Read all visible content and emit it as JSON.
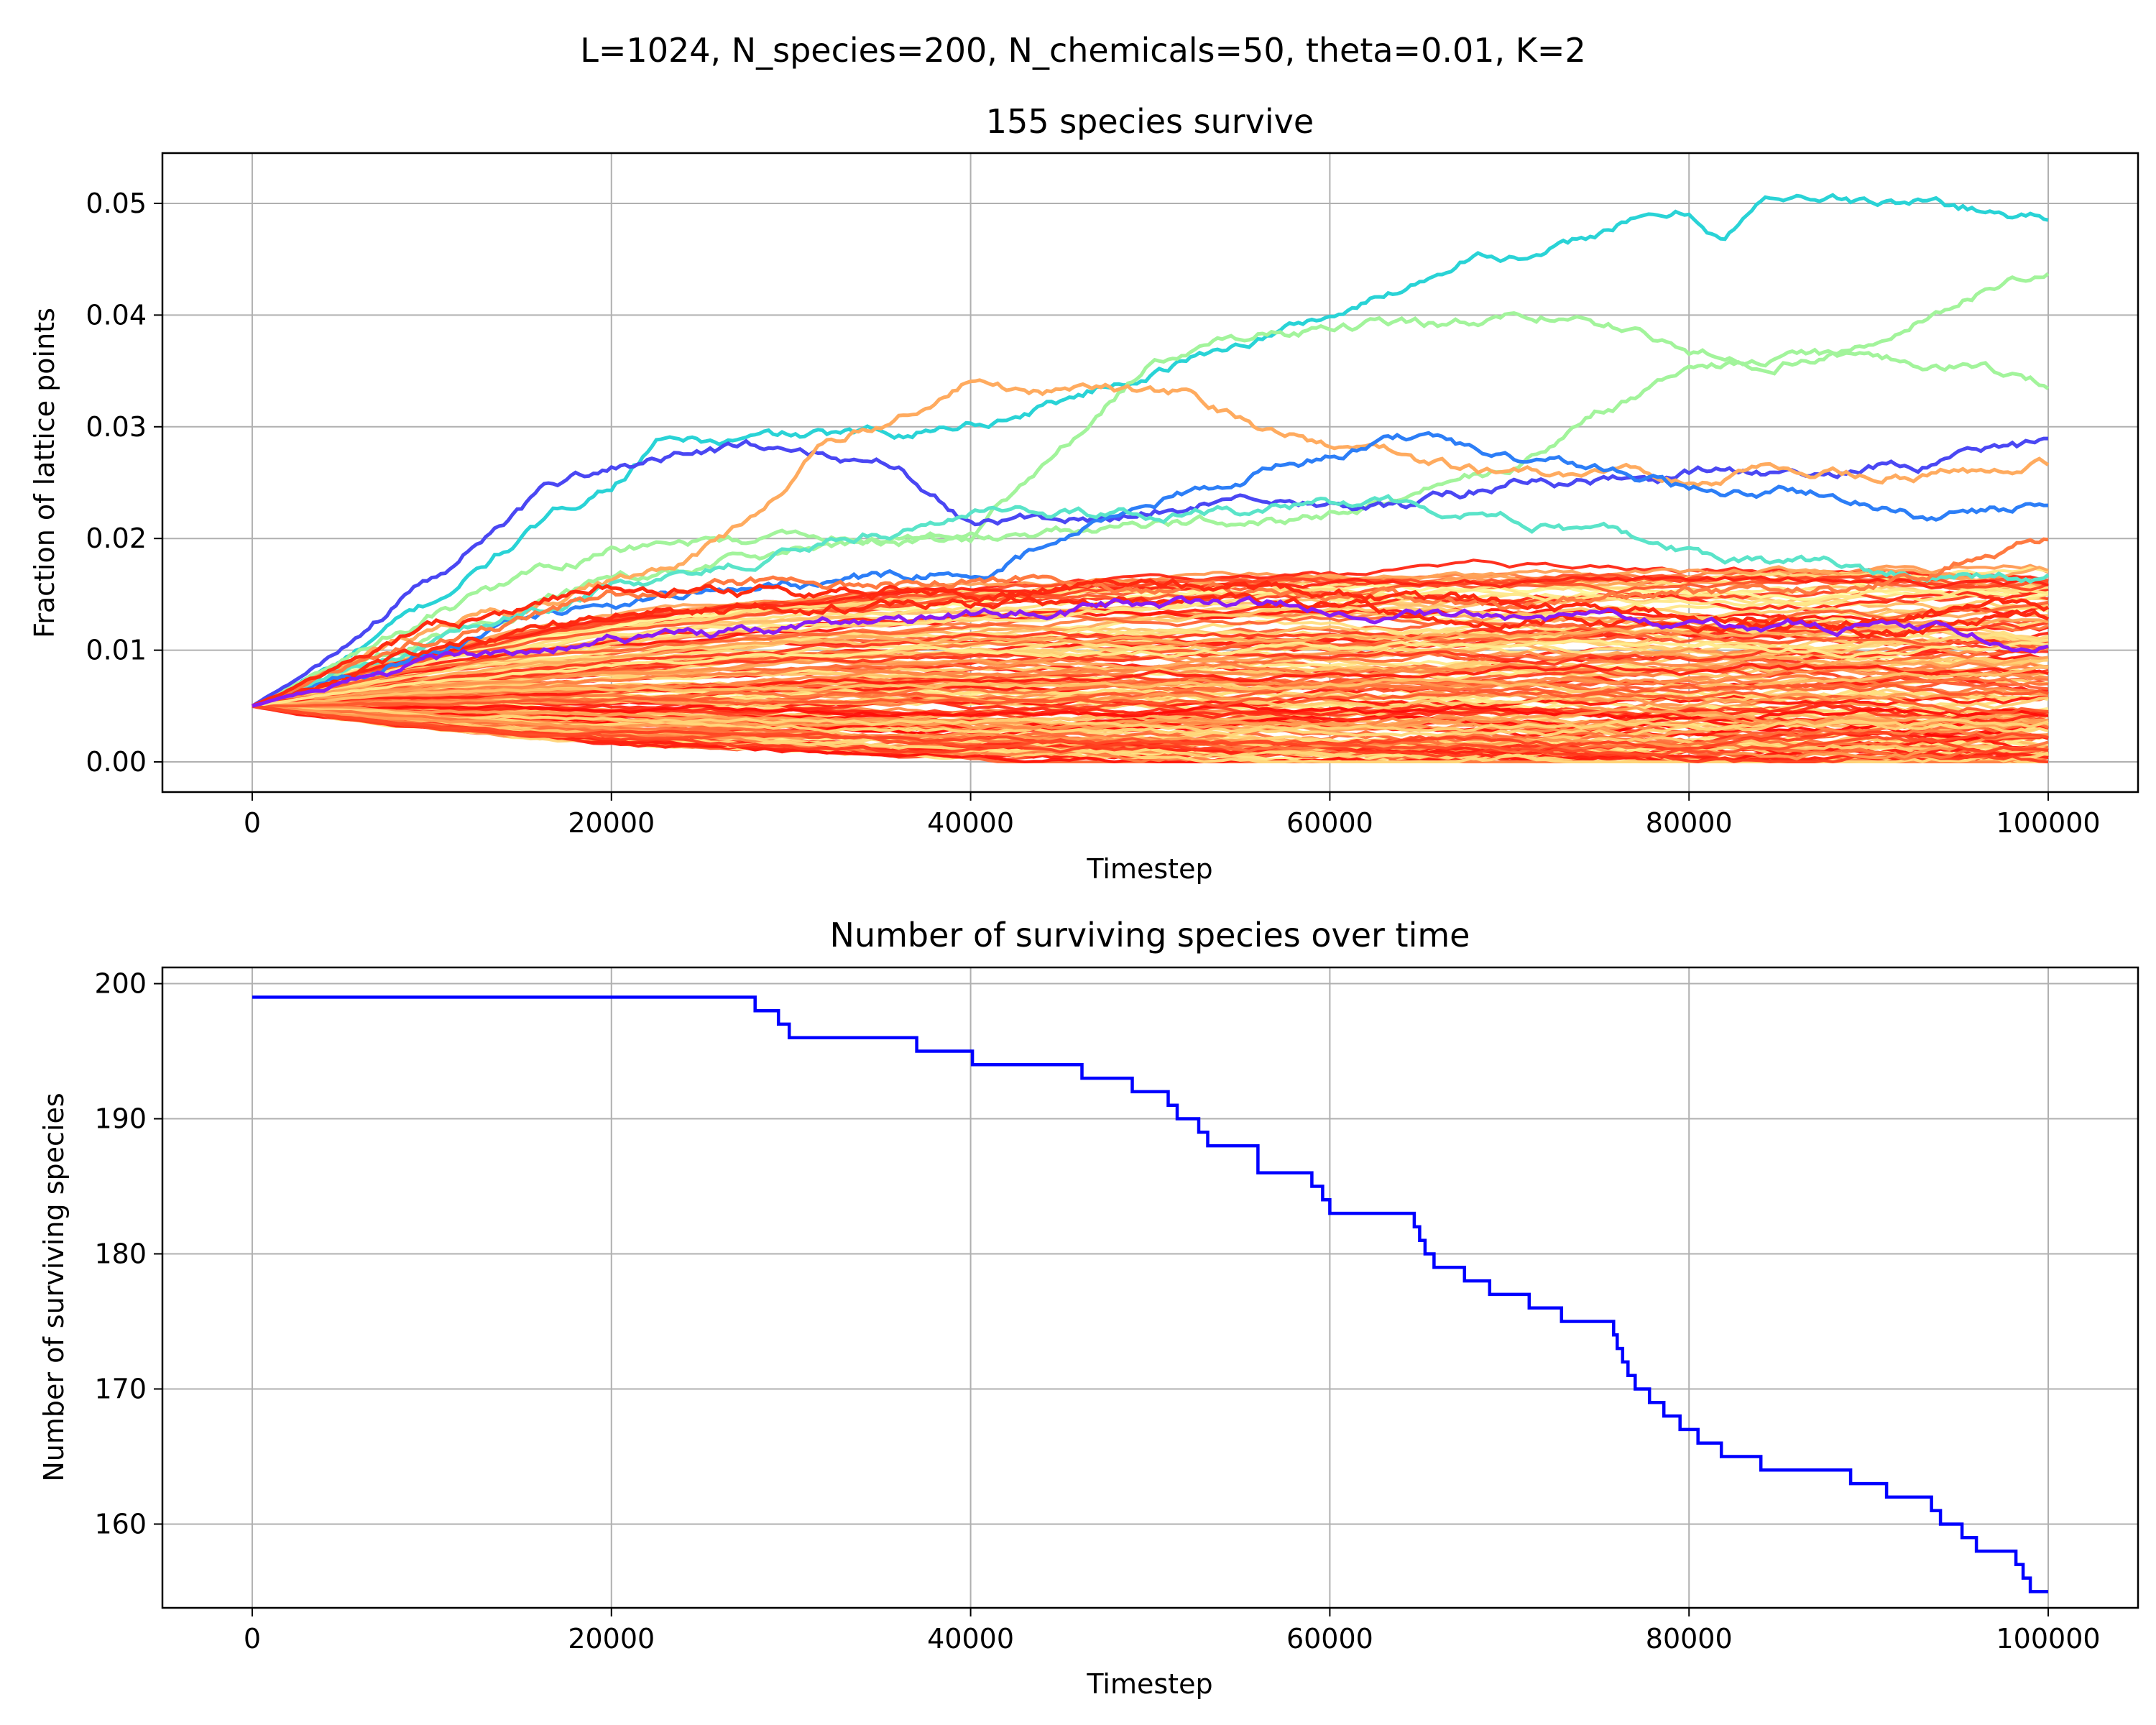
{
  "figure": {
    "suptitle": "L=1024, N_species=200, N_chemicals=50, theta=0.01, K=2",
    "colormap": "rainbow"
  },
  "chart_data": [
    {
      "type": "line",
      "title": "155 species survive",
      "xlabel": "Timestep",
      "ylabel": "Fraction of lattice points",
      "xlim": [
        -5000,
        105000
      ],
      "ylim": [
        -0.0027,
        0.0545
      ],
      "xticks": [
        0,
        20000,
        40000,
        60000,
        80000,
        100000
      ],
      "xtick_labels": [
        "0",
        "20000",
        "40000",
        "60000",
        "80000",
        "100000"
      ],
      "yticks": [
        0.0,
        0.01,
        0.02,
        0.03,
        0.04,
        0.05
      ],
      "ytick_labels": [
        "0.00",
        "0.01",
        "0.02",
        "0.03",
        "0.04",
        "0.05"
      ],
      "grid": true,
      "legend": "none",
      "initial_value": 0.005,
      "highlighted_series": [
        {
          "color": "#29d3d6",
          "x": [
            0,
            5000,
            10000,
            15000,
            20000,
            23000,
            26000,
            30000,
            34000,
            38000,
            42000,
            46000,
            50000,
            54000,
            58000,
            62000,
            66000,
            68000,
            72000,
            76000,
            80000,
            82000,
            84000,
            86000,
            90000,
            94000,
            98000,
            100000
          ],
          "y": [
            0.005,
            0.009,
            0.014,
            0.02,
            0.025,
            0.029,
            0.0285,
            0.029,
            0.029,
            0.03,
            0.031,
            0.033,
            0.035,
            0.037,
            0.039,
            0.041,
            0.044,
            0.046,
            0.045,
            0.048,
            0.049,
            0.047,
            0.05,
            0.051,
            0.05,
            0.05,
            0.049,
            0.049
          ]
        },
        {
          "color": "#a2f49b",
          "x": [
            0,
            10000,
            20000,
            30000,
            40000,
            50000,
            56000,
            62000,
            68000,
            72000,
            76000,
            80000,
            84000,
            88000,
            92000,
            96000,
            100000
          ],
          "y": [
            0.005,
            0.013,
            0.019,
            0.02,
            0.02,
            0.036,
            0.038,
            0.039,
            0.039,
            0.04,
            0.039,
            0.037,
            0.036,
            0.037,
            0.039,
            0.042,
            0.044
          ]
        },
        {
          "color": "#a2f49b",
          "x": [
            0,
            10000,
            20000,
            30000,
            40000,
            50000,
            60000,
            70000,
            75000,
            80000,
            85000,
            90000,
            95000,
            100000
          ],
          "y": [
            0.005,
            0.011,
            0.016,
            0.019,
            0.02,
            0.021,
            0.022,
            0.026,
            0.031,
            0.035,
            0.036,
            0.036,
            0.036,
            0.034
          ]
        },
        {
          "color": "#4a47f3",
          "x": [
            0,
            4000,
            8000,
            12000,
            16000,
            20000,
            24000,
            28000,
            32000,
            36000,
            40000,
            46000,
            52000,
            58000,
            64000,
            70000,
            76000,
            82000,
            88000,
            94000,
            100000
          ],
          "y": [
            0.005,
            0.009,
            0.014,
            0.019,
            0.024,
            0.026,
            0.027,
            0.028,
            0.028,
            0.027,
            0.022,
            0.022,
            0.023,
            0.024,
            0.023,
            0.025,
            0.025,
            0.026,
            0.026,
            0.027,
            0.028
          ]
        },
        {
          "color": "#ffab5f",
          "x": [
            0,
            10000,
            20000,
            24000,
            28000,
            32000,
            36000,
            40000,
            44000,
            48000,
            52000,
            56000,
            60000,
            64000,
            68000,
            74000,
            80000,
            86000,
            92000,
            100000
          ],
          "y": [
            0.005,
            0.012,
            0.016,
            0.018,
            0.022,
            0.029,
            0.031,
            0.034,
            0.033,
            0.033,
            0.033,
            0.03,
            0.028,
            0.027,
            0.026,
            0.025,
            0.025,
            0.026,
            0.026,
            0.027
          ]
        },
        {
          "color": "#2c7ef7",
          "x": [
            0,
            10000,
            20000,
            30000,
            40000,
            50000,
            56000,
            62000,
            66000,
            70000,
            76000,
            82000,
            88000,
            94000,
            100000
          ],
          "y": [
            0.005,
            0.01,
            0.014,
            0.016,
            0.017,
            0.023,
            0.026,
            0.028,
            0.029,
            0.027,
            0.026,
            0.024,
            0.024,
            0.022,
            0.023
          ]
        },
        {
          "color": "#5ae4c9",
          "x": [
            0,
            10000,
            20000,
            30000,
            40000,
            50000,
            60000,
            70000,
            80000,
            90000,
            100000
          ],
          "y": [
            0.005,
            0.011,
            0.016,
            0.019,
            0.022,
            0.022,
            0.023,
            0.022,
            0.019,
            0.017,
            0.017
          ]
        },
        {
          "color": "#ff7a41",
          "x": [
            0,
            10000,
            20000,
            30000,
            40000,
            50000,
            60000,
            70000,
            80000,
            90000,
            100000
          ],
          "y": [
            0.005,
            0.011,
            0.015,
            0.016,
            0.016,
            0.016,
            0.015,
            0.014,
            0.015,
            0.016,
            0.02
          ]
        },
        {
          "color": "#ff2a10",
          "x": [
            0,
            10000,
            20000,
            30000,
            40000,
            50000,
            60000,
            70000,
            80000,
            90000,
            100000
          ],
          "y": [
            0.005,
            0.012,
            0.016,
            0.015,
            0.015,
            0.016,
            0.015,
            0.014,
            0.013,
            0.013,
            0.014
          ]
        },
        {
          "color": "#ff2a10",
          "x": [
            0,
            10000,
            20000,
            30000,
            40000,
            50000,
            60000,
            70000,
            80000,
            90000,
            100000
          ],
          "y": [
            0.005,
            0.01,
            0.013,
            0.014,
            0.014,
            0.015,
            0.014,
            0.013,
            0.012,
            0.012,
            0.013
          ]
        },
        {
          "color": "#8a1cf5",
          "x": [
            0,
            10000,
            20000,
            30000,
            40000,
            50000,
            60000,
            70000,
            80000,
            90000,
            100000
          ],
          "y": [
            0.005,
            0.009,
            0.011,
            0.012,
            0.013,
            0.014,
            0.014,
            0.013,
            0.012,
            0.012,
            0.011
          ]
        }
      ],
      "background_series": {
        "count": 144,
        "x_end": 100000,
        "final_value_range": [
          0.0,
          0.017
        ],
        "color_range": "rainbow (mostly orange-red)"
      }
    },
    {
      "type": "line",
      "title": "Number of surviving species over time",
      "xlabel": "Timestep",
      "ylabel": "Number of surviving species",
      "xlim": [
        -5000,
        105000
      ],
      "ylim": [
        153.8,
        201.2
      ],
      "xticks": [
        0,
        20000,
        40000,
        60000,
        80000,
        100000
      ],
      "xtick_labels": [
        "0",
        "20000",
        "40000",
        "60000",
        "80000",
        "100000"
      ],
      "yticks": [
        160,
        170,
        180,
        190,
        200
      ],
      "ytick_labels": [
        "160",
        "170",
        "180",
        "190",
        "200"
      ],
      "grid": true,
      "legend": "none",
      "step": true,
      "color": "#0000ff",
      "x": [
        0,
        28000,
        28800,
        29300,
        29900,
        37000,
        40100,
        46200,
        49000,
        51000,
        51500,
        52200,
        52700,
        53200,
        53800,
        56000,
        58500,
        59000,
        59600,
        60000,
        64700,
        65000,
        65300,
        65800,
        67500,
        68900,
        71100,
        72900,
        75800,
        76000,
        76300,
        76600,
        77000,
        77800,
        78600,
        79500,
        80500,
        81200,
        81800,
        82300,
        84000,
        89000,
        91000,
        93500,
        94000,
        94500,
        95200,
        96000,
        98200,
        98600,
        99000,
        100000
      ],
      "y": [
        199,
        198,
        198,
        197,
        196,
        195,
        194,
        193,
        192,
        191,
        190,
        190,
        189,
        188,
        188,
        186,
        186,
        185,
        184,
        183,
        182,
        181,
        180,
        179,
        178,
        177,
        176,
        175,
        174,
        173,
        172,
        171,
        170,
        169,
        168,
        167,
        166,
        166,
        165,
        165,
        164,
        163,
        162,
        161,
        160,
        160,
        159,
        158,
        157,
        156,
        155,
        155
      ]
    }
  ]
}
